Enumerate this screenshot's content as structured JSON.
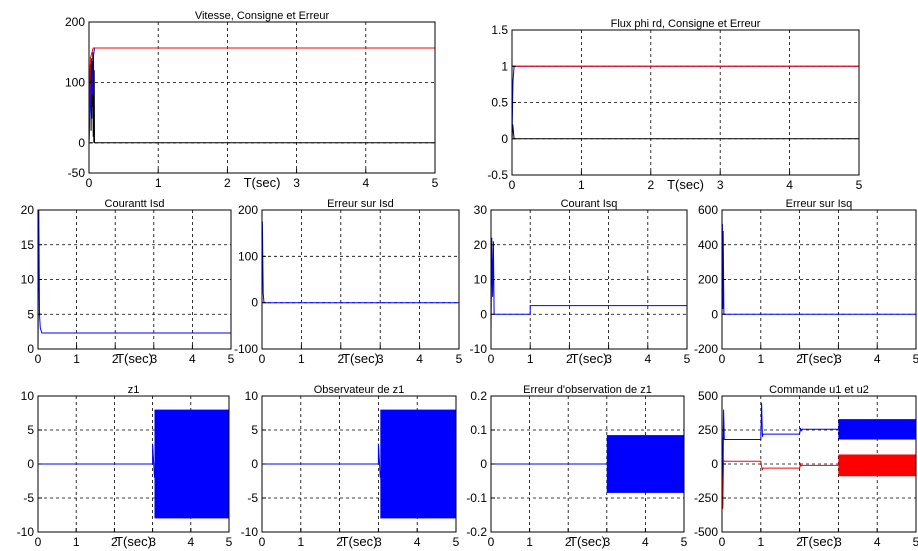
{
  "colors": {
    "blue": "#0000ff",
    "red": "#ff0000",
    "black": "#000000"
  },
  "chart_data": [
    {
      "type": "line",
      "title": "Vitesse, Consigne et Erreur",
      "xlabel": "T(sec)",
      "xlim": [
        0,
        5
      ],
      "ylim": [
        -50,
        200
      ],
      "xticks": [
        0,
        1,
        2,
        3,
        4,
        5
      ],
      "yticks": [
        -50,
        0,
        100,
        200
      ],
      "grid": true,
      "series": [
        {
          "color": "#000000",
          "x": [
            0,
            0.02,
            0.03,
            0.035,
            0.04,
            0.045,
            0.05,
            0.055,
            0.06,
            0.065,
            0.07,
            0.075,
            0.08,
            0.09,
            0.1,
            5
          ],
          "y": [
            0,
            130,
            20,
            140,
            40,
            135,
            60,
            150,
            10,
            145,
            0,
            120,
            0,
            0,
            0,
            0
          ]
        },
        {
          "color": "#0000ff",
          "x": [
            0,
            0.02,
            0.03,
            0.04,
            0.05,
            0.06,
            0.08,
            0.1
          ],
          "y": [
            0,
            100,
            40,
            120,
            80,
            140,
            157,
            157
          ]
        },
        {
          "color": "#ff0000",
          "x": [
            0,
            0.02,
            0.06,
            0.1,
            5
          ],
          "y": [
            0,
            140,
            157,
            157,
            157
          ]
        }
      ]
    },
    {
      "type": "line",
      "title": "Flux phi rd, Consigne et Erreur",
      "xlabel": "T(sec)",
      "xlim": [
        0,
        5
      ],
      "ylim": [
        -0.5,
        1.5
      ],
      "xticks": [
        0,
        1,
        2,
        3,
        4,
        5
      ],
      "yticks": [
        -0.5,
        0,
        0.5,
        1,
        1.5
      ],
      "grid": true,
      "series": [
        {
          "color": "#000000",
          "x": [
            0,
            0.01,
            0.03,
            5
          ],
          "y": [
            0,
            0.2,
            0,
            0
          ]
        },
        {
          "color": "#0000ff",
          "x": [
            0,
            0.015,
            0.03,
            5
          ],
          "y": [
            0,
            0.8,
            1,
            1
          ]
        },
        {
          "color": "#ff0000",
          "x": [
            0,
            0.03,
            5
          ],
          "y": [
            1,
            1,
            1
          ]
        }
      ]
    },
    {
      "type": "line",
      "title": "Courantt Isd",
      "xlabel": "T(sec)",
      "xlim": [
        0,
        5
      ],
      "ylim": [
        0,
        20
      ],
      "xticks": [
        0,
        1,
        2,
        3,
        4,
        5
      ],
      "yticks": [
        0,
        5,
        10,
        15,
        20
      ],
      "grid": true,
      "series": [
        {
          "color": "#0000ff",
          "x": [
            0,
            0.02,
            0.04,
            0.06,
            0.1,
            5
          ],
          "y": [
            0,
            20,
            5,
            3,
            2.3,
            2.3
          ]
        }
      ]
    },
    {
      "type": "line",
      "title": "Erreur sur Isd",
      "xlabel": "T(sec)",
      "xlim": [
        0,
        5
      ],
      "ylim": [
        -100,
        200
      ],
      "xticks": [
        0,
        1,
        2,
        3,
        4,
        5
      ],
      "yticks": [
        -100,
        0,
        100,
        200
      ],
      "grid": true,
      "series": [
        {
          "color": "#0000ff",
          "x": [
            0,
            0.01,
            0.03,
            0.05,
            5
          ],
          "y": [
            0,
            175,
            20,
            0,
            0
          ]
        }
      ]
    },
    {
      "type": "line",
      "title": "Courant Isq",
      "xlabel": "T(sec)",
      "xlim": [
        0,
        5
      ],
      "ylim": [
        -10,
        30
      ],
      "xticks": [
        0,
        1,
        2,
        3,
        4,
        5
      ],
      "yticks": [
        -10,
        0,
        10,
        20,
        30
      ],
      "grid": true,
      "series": [
        {
          "color": "#0000ff",
          "x": [
            0,
            0.02,
            0.04,
            0.06,
            0.08,
            0.1,
            1,
            1,
            5
          ],
          "y": [
            -5,
            22,
            5,
            21,
            0,
            0,
            0,
            2.5,
            2.5
          ]
        }
      ]
    },
    {
      "type": "line",
      "title": "Erreur sur Isq",
      "xlabel": "T(sec)",
      "xlim": [
        0,
        5
      ],
      "ylim": [
        -200,
        600
      ],
      "xticks": [
        0,
        1,
        2,
        3,
        4,
        5
      ],
      "yticks": [
        -200,
        0,
        200,
        400,
        600
      ],
      "grid": true,
      "series": [
        {
          "color": "#0000ff",
          "x": [
            0,
            0.01,
            0.02,
            0.03,
            0.05,
            5
          ],
          "y": [
            0,
            520,
            30,
            480,
            0,
            0
          ]
        }
      ]
    },
    {
      "type": "line",
      "title": "z1",
      "xlabel": "T(sec)",
      "xlim": [
        0,
        5
      ],
      "ylim": [
        -10,
        10
      ],
      "xticks": [
        0,
        1,
        2,
        3,
        4,
        5
      ],
      "yticks": [
        -10,
        -5,
        0,
        5,
        10
      ],
      "grid": true,
      "series": [
        {
          "color": "#0000ff",
          "x": [
            0,
            3,
            3,
            3.05
          ],
          "y": [
            0,
            0,
            3,
            -2
          ]
        }
      ],
      "bands": [
        {
          "color": "#0000ff",
          "x0": 3.05,
          "x1": 5,
          "ymin": -8,
          "ymax": 8
        }
      ]
    },
    {
      "type": "line",
      "title": "Observateur de z1",
      "xlabel": "T(sec)",
      "xlim": [
        0,
        5
      ],
      "ylim": [
        -10,
        10
      ],
      "xticks": [
        0,
        1,
        2,
        3,
        4,
        5
      ],
      "yticks": [
        -10,
        -5,
        0,
        5,
        10
      ],
      "grid": true,
      "series": [
        {
          "color": "#0000ff",
          "x": [
            0,
            3,
            3,
            3.05
          ],
          "y": [
            0,
            0,
            3,
            -2
          ]
        }
      ],
      "bands": [
        {
          "color": "#0000ff",
          "x0": 3.05,
          "x1": 5,
          "ymin": -8,
          "ymax": 8
        }
      ]
    },
    {
      "type": "line",
      "title": "Erreur d'observation de z1",
      "xlabel": "T(sec)",
      "xlim": [
        0,
        5
      ],
      "ylim": [
        -0.2,
        0.2
      ],
      "xticks": [
        0,
        1,
        2,
        3,
        4,
        5
      ],
      "yticks": [
        -0.2,
        -0.1,
        0,
        0.1,
        0.2
      ],
      "grid": true,
      "series": [
        {
          "color": "#0000ff",
          "x": [
            0,
            3
          ],
          "y": [
            0,
            0
          ]
        }
      ],
      "bands": [
        {
          "color": "#0000ff",
          "x0": 3,
          "x1": 5,
          "ymin": -0.085,
          "ymax": 0.085
        }
      ]
    },
    {
      "type": "line",
      "title": "Commande u1 et u2",
      "xlabel": "T(sec)",
      "xlim": [
        0,
        5
      ],
      "ylim": [
        -500,
        500
      ],
      "xticks": [
        0,
        1,
        2,
        3,
        4,
        5
      ],
      "yticks": [
        -500,
        -250,
        0,
        250,
        500
      ],
      "grid": true,
      "series": [
        {
          "color": "#0000ff",
          "x": [
            0,
            0.02,
            0.04,
            0.06,
            0.1,
            1,
            1.02,
            1.04,
            1.06,
            2,
            2.02,
            2.04,
            2.06,
            3
          ],
          "y": [
            420,
            -300,
            400,
            180,
            180,
            180,
            450,
            200,
            220,
            220,
            265,
            245,
            255,
            255
          ]
        },
        {
          "color": "#ff0000",
          "x": [
            0,
            0.02,
            0.04,
            0.06,
            0.1,
            1,
            1.02,
            1.04,
            1.06,
            2,
            2.02,
            2.04,
            2.06,
            3
          ],
          "y": [
            -20,
            -330,
            30,
            20,
            20,
            20,
            -20,
            -40,
            -30,
            -30,
            0,
            -15,
            -10,
            -10
          ]
        }
      ],
      "bands": [
        {
          "color": "#0000ff",
          "x0": 3,
          "x1": 5,
          "ymin": 180,
          "ymax": 330
        },
        {
          "color": "#ff0000",
          "x0": 3,
          "x1": 5,
          "ymin": -90,
          "ymax": 70
        }
      ]
    }
  ]
}
